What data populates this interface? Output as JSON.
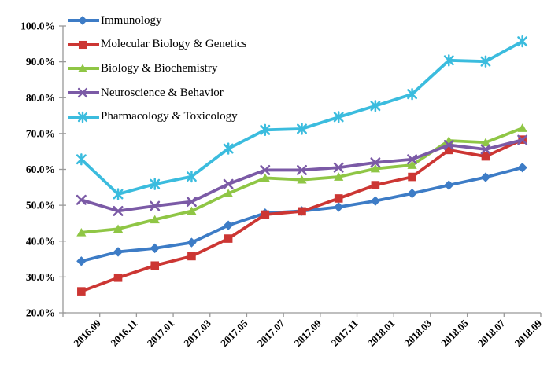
{
  "chart_data": {
    "type": "line",
    "title": "",
    "categories": [
      "2016.09",
      "2016.11",
      "2017.01",
      "2017.03",
      "2017.05",
      "2017.07",
      "2017.09",
      "2017.11",
      "2018.01",
      "2018.03",
      "2018.05",
      "2018.07",
      "2018.09"
    ],
    "series": [
      {
        "name": "Immunology",
        "color": "#3D7CC6",
        "marker": "diamond",
        "values": [
          34.4,
          37.0,
          38.0,
          39.6,
          44.4,
          47.8,
          48.4,
          49.5,
          51.2,
          53.3,
          55.6,
          57.8,
          60.5
        ]
      },
      {
        "name": "Molecular Biology & Genetics",
        "color": "#CC3633",
        "marker": "square",
        "values": [
          26.0,
          29.8,
          33.2,
          35.8,
          40.7,
          47.4,
          48.3,
          51.9,
          55.6,
          57.9,
          65.4,
          63.6,
          68.3
        ]
      },
      {
        "name": "Biology & Biochemistry",
        "color": "#8FC645",
        "marker": "triangle",
        "values": [
          42.4,
          43.4,
          46.0,
          48.4,
          53.3,
          57.6,
          57.1,
          57.9,
          60.2,
          61.2,
          68.0,
          67.5,
          71.5
        ]
      },
      {
        "name": "Neuroscience & Behavior",
        "color": "#7B5AA6",
        "marker": "x",
        "values": [
          51.5,
          48.4,
          49.8,
          51.0,
          55.9,
          59.8,
          59.8,
          60.5,
          61.9,
          62.8,
          66.8,
          65.6,
          68.2
        ]
      },
      {
        "name": "Pharmacology & Toxicology",
        "color": "#3BBCDE",
        "marker": "asterisk",
        "values": [
          62.8,
          53.1,
          55.9,
          58.0,
          65.8,
          71.0,
          71.3,
          74.6,
          77.7,
          81.0,
          90.4,
          90.1,
          95.7
        ]
      }
    ],
    "y_axis": {
      "min": 20,
      "max": 100,
      "step": 10,
      "tick_labels": [
        "20.0%",
        "30.0%",
        "40.0%",
        "50.0%",
        "60.0%",
        "70.0%",
        "80.0%",
        "90.0%",
        "100.0%"
      ]
    },
    "x_axis": {
      "label_rotation": -45
    },
    "legend_position": "top-left",
    "grid": false,
    "axis_color": "#999999",
    "text_color": "#000000",
    "background": "#FFFFFF"
  }
}
